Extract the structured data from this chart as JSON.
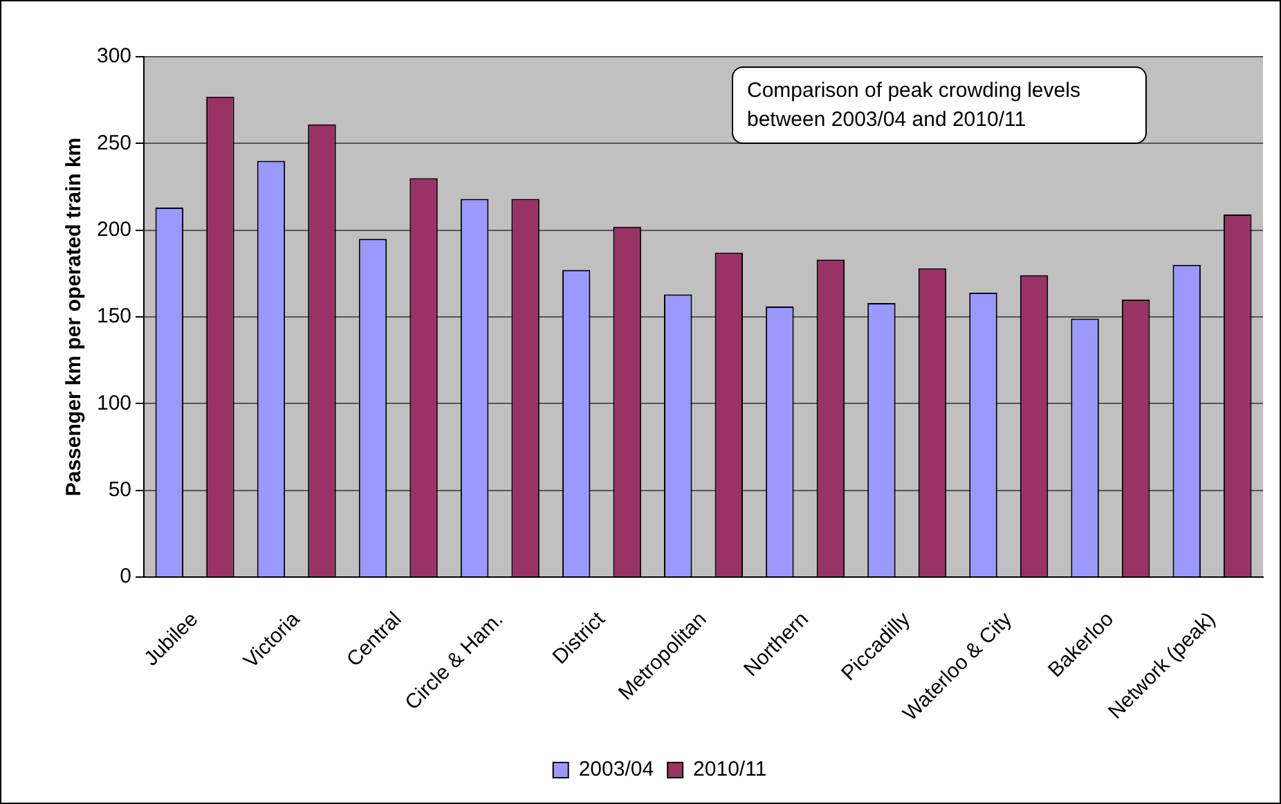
{
  "chart_data": {
    "type": "bar",
    "ylabel": "Passenger km per operated train km",
    "categories": [
      "Jubilee",
      "Victoria",
      "Central",
      "Circle & Ham.",
      "District",
      "Metropolitan",
      "Northern",
      "Piccadilly",
      "Waterloo & City",
      "Bakerloo",
      "Network (peak)"
    ],
    "series": [
      {
        "name": "2003/04",
        "color": "#9999ff",
        "values": [
          213,
          240,
          195,
          218,
          177,
          163,
          156,
          158,
          164,
          149,
          180
        ]
      },
      {
        "name": "2010/11",
        "color": "#993366",
        "values": [
          277,
          261,
          230,
          218,
          202,
          187,
          183,
          178,
          174,
          160,
          209
        ]
      }
    ],
    "ylim": [
      0,
      300
    ],
    "yticks": [
      0,
      50,
      100,
      150,
      200,
      250,
      300
    ],
    "grid": "y",
    "legend": "bottom",
    "annotations": [
      "Comparison of peak crowding levels between 2003/04 and 2010/11"
    ]
  }
}
